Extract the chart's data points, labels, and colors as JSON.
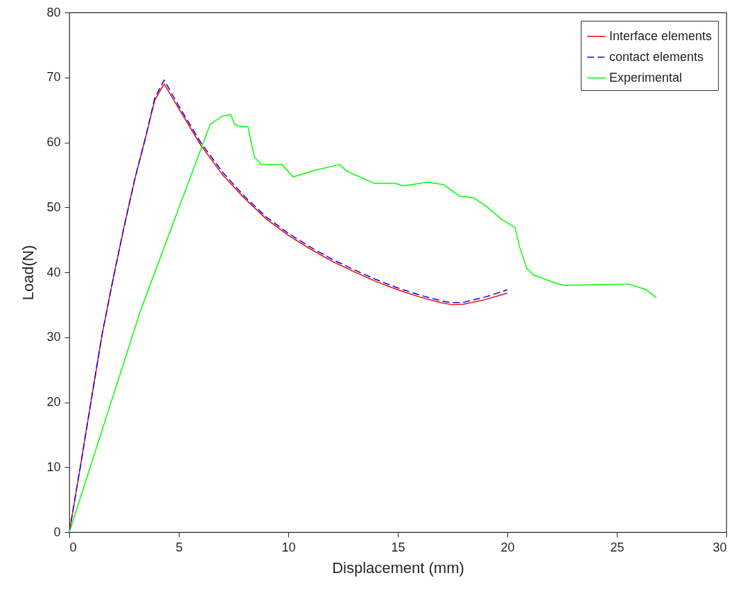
{
  "chart_data": {
    "type": "line",
    "xlabel": "Displacement (mm)",
    "ylabel": "Load(N)",
    "xlim": [
      0,
      30
    ],
    "ylim": [
      0,
      80
    ],
    "xticks": [
      0,
      5,
      10,
      15,
      20,
      25,
      30
    ],
    "yticks": [
      0,
      10,
      20,
      30,
      40,
      50,
      60,
      70,
      80
    ],
    "grid": false,
    "legend": "top right",
    "series": [
      {
        "name": "Interface elements",
        "color": "#ff0000",
        "line_style": "solid",
        "x": [
          0,
          0.5,
          1,
          1.5,
          2,
          2.5,
          3,
          3.5,
          3.9,
          4.33,
          5,
          6,
          7,
          8,
          9,
          10,
          11,
          12,
          13,
          14,
          15,
          16,
          17,
          17.5,
          18,
          19,
          20
        ],
        "values": [
          0,
          10,
          20.3,
          30.5,
          39,
          47,
          54.5,
          61,
          66.5,
          69,
          65.2,
          59.6,
          55,
          51.4,
          48.2,
          45.7,
          43.6,
          41.7,
          40.1,
          38.6,
          37.3,
          36.2,
          35.3,
          35,
          35.1,
          35.8,
          36.8
        ]
      },
      {
        "name": "contact elements",
        "color": "#0000ff",
        "line_style": "dashed",
        "x": [
          0,
          0.5,
          1,
          1.5,
          2,
          2.5,
          3,
          3.5,
          3.9,
          4.33,
          5,
          6,
          7,
          8,
          9,
          10,
          11,
          12,
          13,
          14,
          15,
          16,
          17,
          17.5,
          18,
          19,
          20
        ],
        "values": [
          0,
          10,
          20.3,
          30.5,
          39,
          47,
          54.5,
          61,
          66.8,
          69.6,
          65.6,
          60,
          55.4,
          51.7,
          48.5,
          46,
          43.9,
          42,
          40.4,
          38.9,
          37.6,
          36.5,
          35.6,
          35.3,
          35.4,
          36.2,
          37.3
        ]
      },
      {
        "name": "Experimental",
        "color": "#00ff00",
        "line_style": "solid",
        "x": [
          0,
          3.26,
          6.42,
          6.96,
          7.37,
          7.53,
          7.69,
          8.16,
          8.45,
          8.77,
          9.71,
          10.22,
          10.85,
          11.08,
          12.34,
          12.66,
          13.92,
          14.87,
          15.28,
          16.36,
          17.09,
          17.82,
          18.45,
          18.99,
          19.72,
          20.35,
          20.57,
          20.89,
          21.2,
          22.15,
          22.56,
          24.15,
          25.54,
          26.36,
          26.8
        ],
        "values": [
          0,
          34.2,
          62.7,
          64,
          64.3,
          62.9,
          62.5,
          62.4,
          57.7,
          56.6,
          56.6,
          54.7,
          55.3,
          55.6,
          56.6,
          55.6,
          53.7,
          53.7,
          53.3,
          53.9,
          53.5,
          51.7,
          51.5,
          50.3,
          48.2,
          46.9,
          43.8,
          40.6,
          39.6,
          38.4,
          38,
          38.1,
          38.2,
          37.3,
          36.1
        ]
      }
    ]
  }
}
